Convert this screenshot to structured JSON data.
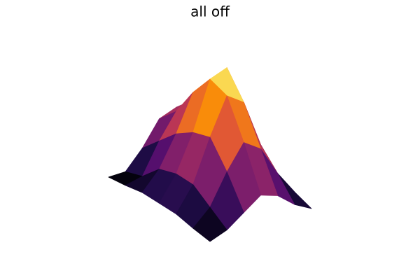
{
  "chart_data": {
    "type": "surface",
    "title": "all off",
    "axes": false,
    "grid": false,
    "colormap": "inferno",
    "zlim": [
      0,
      1
    ],
    "z": [
      [
        0.0,
        0.05,
        0.15,
        0.25,
        0.2,
        0.08,
        0.0
      ],
      [
        0.02,
        0.15,
        0.4,
        0.6,
        0.5,
        0.25,
        0.05
      ],
      [
        0.05,
        0.25,
        0.6,
        0.9,
        0.8,
        0.4,
        0.08
      ],
      [
        0.05,
        0.25,
        0.55,
        0.95,
        1.0,
        0.5,
        0.1
      ],
      [
        0.05,
        0.2,
        0.45,
        0.75,
        0.8,
        0.45,
        0.1
      ],
      [
        0.02,
        0.05,
        0.3,
        0.5,
        0.55,
        0.35,
        0.08
      ],
      [
        0.0,
        0.0,
        0.15,
        0.35,
        0.4,
        0.25,
        0.05
      ]
    ]
  }
}
